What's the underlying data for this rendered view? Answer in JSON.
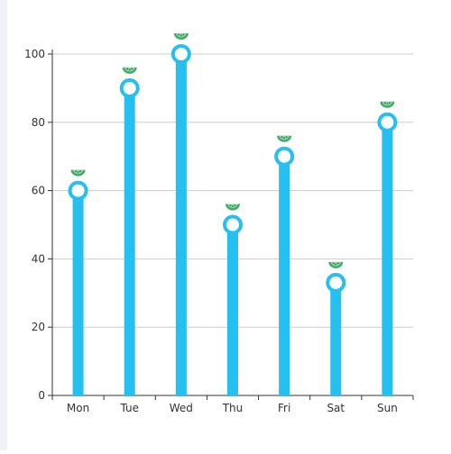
{
  "chart_data": {
    "type": "bar",
    "categories": [
      "Mon",
      "Tue",
      "Wed",
      "Thu",
      "Fri",
      "Sat",
      "Sun"
    ],
    "values": [
      60,
      90,
      100,
      50,
      70,
      33,
      80
    ],
    "y_ticks": [
      "0",
      "20",
      "40",
      "60",
      "80",
      "100"
    ],
    "ylim": [
      0,
      100
    ],
    "grid": true,
    "title": "",
    "xlabel": "",
    "ylabel": "",
    "colors": {
      "bar": "#26c0f0",
      "marker_stroke": "#26c0f0",
      "marker_fill": "#ffffff",
      "watermelon_rind": "#3fae6a",
      "grid": "#cccccc",
      "axis": "#333333"
    },
    "decoration_icon": "watermelon-slice-icon"
  }
}
